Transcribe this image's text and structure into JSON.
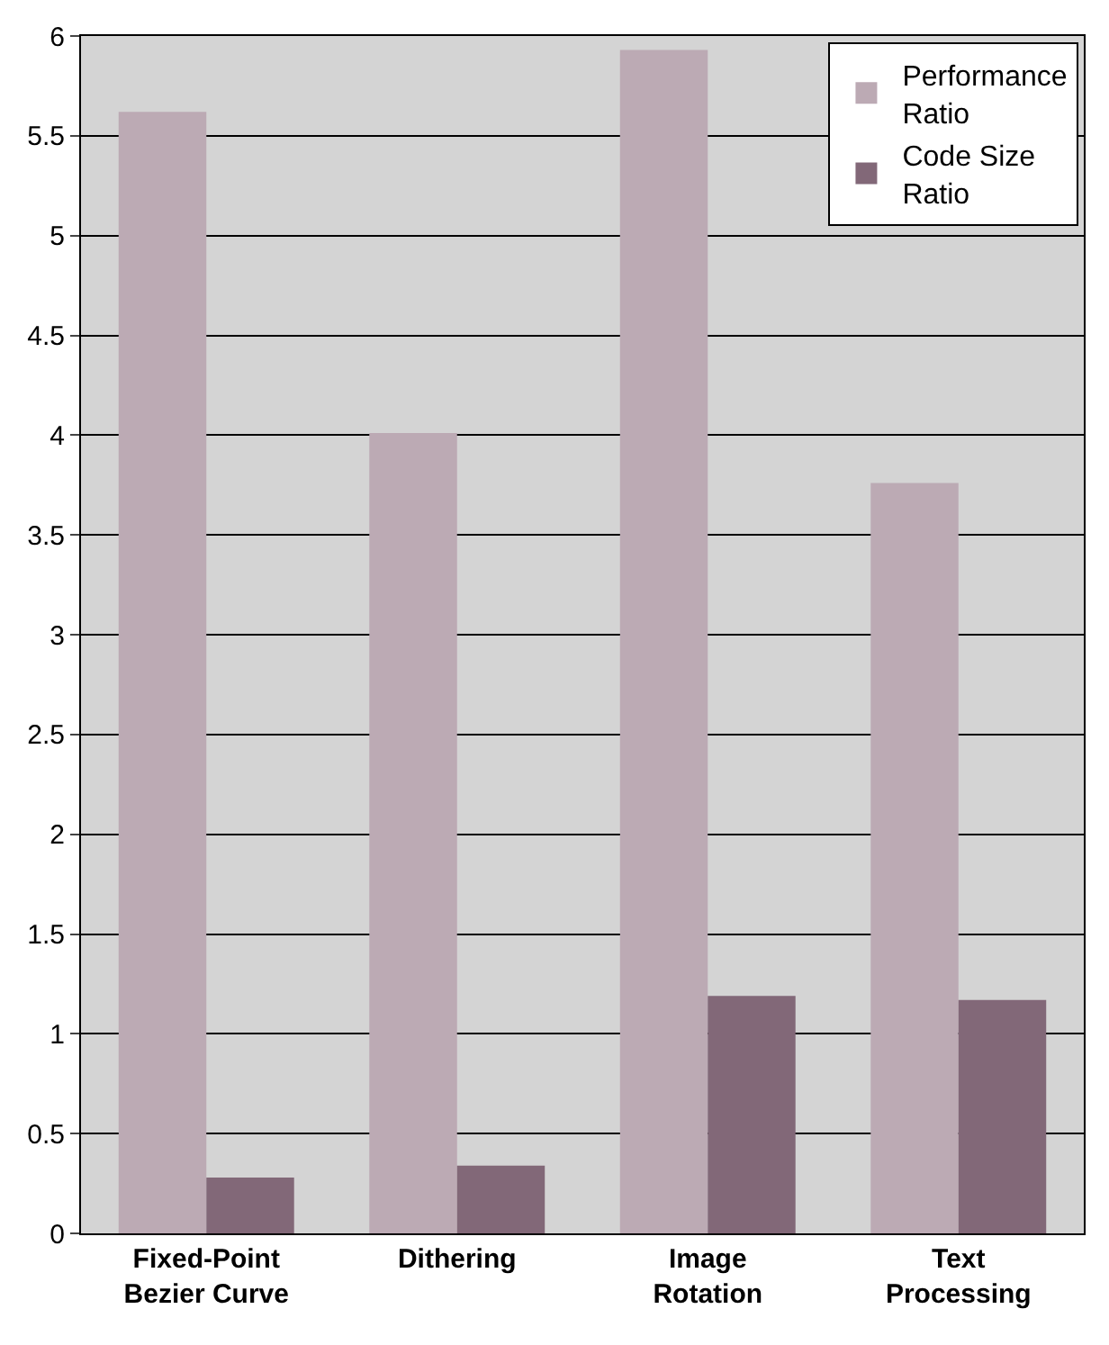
{
  "chart_data": {
    "type": "bar",
    "categories": [
      "Fixed-Point Bezier Curve",
      "Dithering",
      "Image Rotation",
      "Text Processing"
    ],
    "series": [
      {
        "name": "Performance Ratio",
        "color": "#bcaab4",
        "values": [
          5.62,
          4.01,
          5.93,
          3.76
        ]
      },
      {
        "name": "Code Size Ratio",
        "color": "#826878",
        "values": [
          0.28,
          0.34,
          1.19,
          1.17
        ]
      }
    ],
    "ylim": [
      0,
      6
    ],
    "yticks": [
      0,
      0.5,
      1,
      1.5,
      2,
      2.5,
      3,
      3.5,
      4,
      4.5,
      5,
      5.5,
      6
    ],
    "grid": "y",
    "legend": "top right"
  }
}
